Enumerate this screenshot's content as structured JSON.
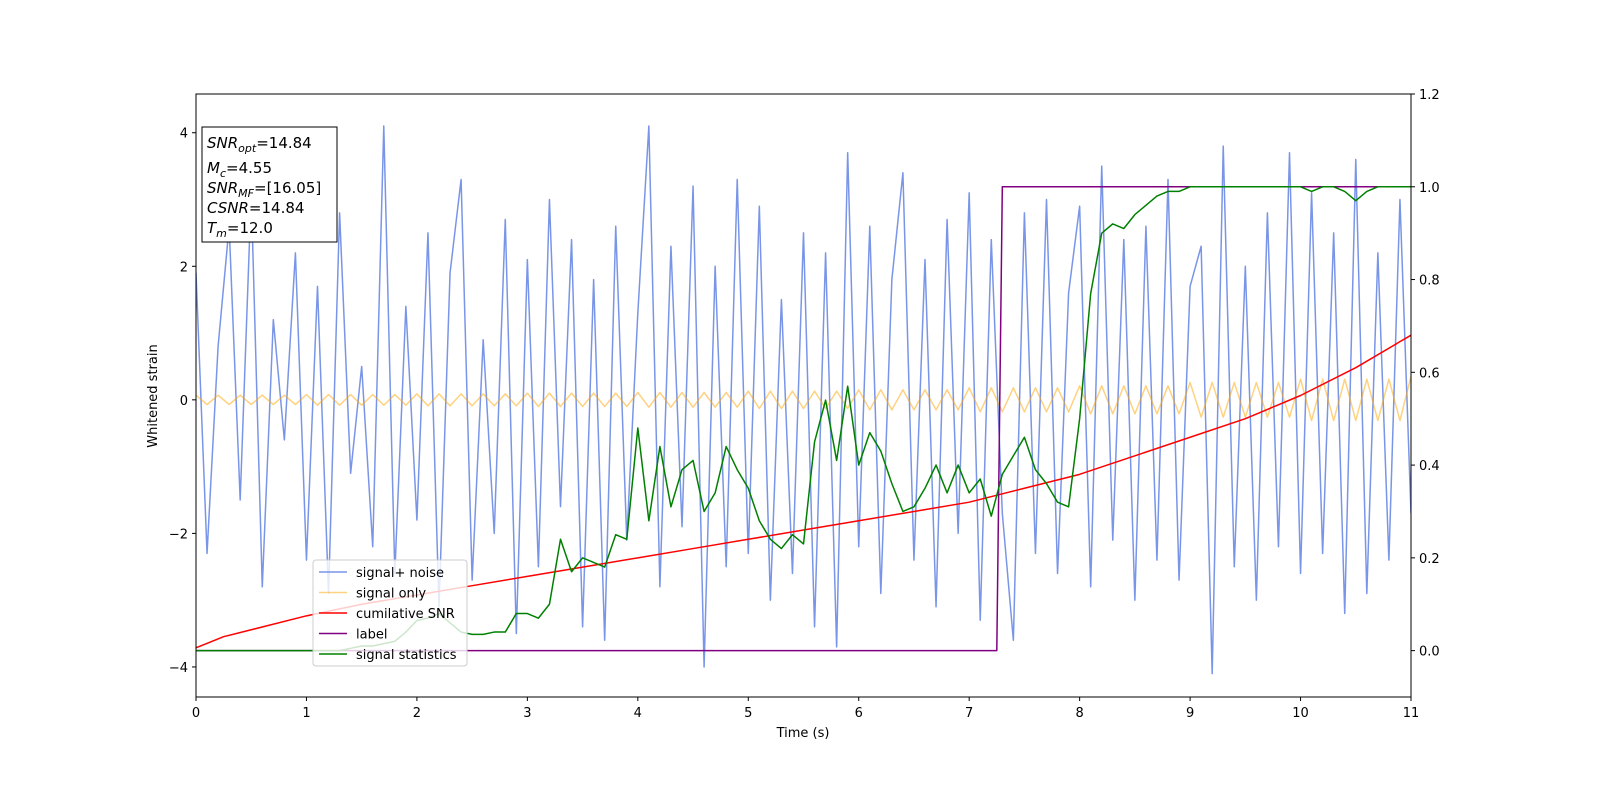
{
  "chart_data": {
    "type": "line",
    "xlabel": "Time (s)",
    "ylabel": "Whitened strain",
    "xlim": [
      0,
      11
    ],
    "xticks": [
      0,
      1,
      2,
      3,
      4,
      5,
      6,
      7,
      8,
      9,
      10,
      11
    ],
    "ylim": [
      -4.45,
      4.58
    ],
    "yticks": [
      {
        "value": -4,
        "label": "−4"
      },
      {
        "value": -2,
        "label": "−2"
      },
      0,
      2,
      4
    ],
    "y2lim": [
      -0.1,
      1.2
    ],
    "y2ticks": [
      {
        "value": 0,
        "label": "0.0"
      },
      0.2,
      0.4,
      0.6,
      0.8,
      {
        "value": 1,
        "label": "1.0"
      },
      1.2
    ],
    "legend": "lower left",
    "x": [
      0,
      0.1,
      0.2,
      0.3,
      0.4,
      0.5,
      0.6,
      0.7,
      0.8,
      0.9,
      1,
      1.1,
      1.2,
      1.3,
      1.4,
      1.5,
      1.6,
      1.7,
      1.8,
      1.9,
      2,
      2.1,
      2.2,
      2.3,
      2.4,
      2.5,
      2.6,
      2.7,
      2.8,
      2.9,
      3,
      3.1,
      3.2,
      3.3,
      3.4,
      3.5,
      3.6,
      3.7,
      3.8,
      3.9,
      4,
      4.1,
      4.2,
      4.3,
      4.4,
      4.5,
      4.6,
      4.7,
      4.8,
      4.9,
      5,
      5.1,
      5.2,
      5.3,
      5.4,
      5.5,
      5.6,
      5.7,
      5.8,
      5.9,
      6,
      6.1,
      6.2,
      6.3,
      6.4,
      6.5,
      6.6,
      6.7,
      6.8,
      6.9,
      7,
      7.1,
      7.2,
      7.3,
      7.4,
      7.5,
      7.6,
      7.7,
      7.8,
      7.9,
      8,
      8.1,
      8.2,
      8.3,
      8.4,
      8.5,
      8.6,
      8.7,
      8.8,
      8.9,
      9,
      9.1,
      9.2,
      9.3,
      9.4,
      9.5,
      9.6,
      9.7,
      9.8,
      9.9,
      10,
      10.1,
      10.2,
      10.3,
      10.4,
      10.5,
      10.6,
      10.7,
      10.8,
      10.9,
      11
    ],
    "series": [
      {
        "name": "signal+ noise",
        "color": "#6a8ae6",
        "alpha": 0.9,
        "values": [
          1.9,
          -2.3,
          0.8,
          2.6,
          -1.5,
          3.1,
          -2.8,
          1.2,
          -0.6,
          2.2,
          -2.4,
          1.7,
          -2.9,
          2.8,
          -1.1,
          0.5,
          -2.2,
          4.1,
          -2.6,
          1.4,
          -1.8,
          2.5,
          -3.1,
          1.9,
          3.3,
          -2.7,
          0.9,
          -2.0,
          2.7,
          -3.5,
          2.1,
          -2.5,
          3.0,
          -1.6,
          2.4,
          -3.4,
          1.8,
          -3.6,
          2.6,
          -2.1,
          1.3,
          4.1,
          -2.8,
          2.3,
          -1.9,
          3.2,
          -4.0,
          2.0,
          -2.5,
          3.3,
          -2.3,
          2.9,
          -3.0,
          1.5,
          -2.6,
          2.5,
          -3.4,
          2.2,
          -3.7,
          3.7,
          -2.2,
          2.6,
          -2.9,
          1.8,
          3.4,
          -2.4,
          2.1,
          -3.1,
          2.7,
          -2.0,
          3.1,
          -3.3,
          2.4,
          -1.7,
          -3.6,
          2.8,
          -2.3,
          3.0,
          -2.6,
          1.6,
          2.9,
          -2.8,
          3.5,
          -2.1,
          2.4,
          -3.0,
          2.6,
          -2.4,
          3.3,
          -2.7,
          1.7,
          2.3,
          -4.1,
          3.8,
          -2.5,
          2.0,
          -3.0,
          2.8,
          -2.2,
          3.7,
          -2.6,
          3.1,
          -2.3,
          2.5,
          -3.2,
          3.6,
          -2.9,
          2.2,
          -2.4,
          3.0,
          -1.7
        ]
      },
      {
        "name": "signal only",
        "color": "#ffa500",
        "alpha": 0.5,
        "values": [
          0.07,
          -0.07,
          0.07,
          -0.07,
          0.07,
          -0.07,
          0.07,
          -0.07,
          0.07,
          -0.07,
          0.08,
          -0.08,
          0.08,
          -0.08,
          0.08,
          -0.08,
          0.08,
          -0.08,
          0.08,
          -0.08,
          0.09,
          -0.09,
          0.09,
          -0.09,
          0.09,
          -0.09,
          0.09,
          -0.09,
          0.09,
          -0.09,
          0.1,
          -0.1,
          0.1,
          -0.1,
          0.1,
          -0.1,
          0.1,
          -0.1,
          0.1,
          -0.1,
          0.11,
          -0.11,
          0.11,
          -0.11,
          0.11,
          -0.11,
          0.11,
          -0.11,
          0.11,
          -0.11,
          0.13,
          -0.13,
          0.13,
          -0.13,
          0.13,
          -0.13,
          0.13,
          -0.13,
          0.13,
          -0.13,
          0.15,
          -0.15,
          0.15,
          -0.15,
          0.15,
          -0.15,
          0.15,
          -0.15,
          0.15,
          -0.15,
          0.18,
          -0.18,
          0.18,
          -0.18,
          0.18,
          -0.18,
          0.18,
          -0.18,
          0.18,
          -0.18,
          0.21,
          -0.21,
          0.21,
          -0.21,
          0.21,
          -0.21,
          0.21,
          -0.21,
          0.21,
          -0.21,
          0.26,
          -0.26,
          0.26,
          -0.26,
          0.26,
          -0.26,
          0.26,
          -0.26,
          0.26,
          -0.26,
          0.31,
          -0.31,
          0.31,
          -0.31,
          0.31,
          -0.31,
          0.31,
          -0.31,
          0.31,
          -0.31,
          0.35
        ]
      },
      {
        "name": "cumilative SNR",
        "color": "#ff0000",
        "alpha": 1,
        "axis": "y2",
        "x": [
          0,
          0.25,
          0.5,
          1,
          1.5,
          2,
          2.5,
          3,
          3.5,
          4,
          4.5,
          5,
          5.5,
          6,
          6.5,
          7,
          7.5,
          8,
          8.5,
          9,
          9.5,
          10,
          10.5,
          11
        ],
        "values": [
          0.006,
          0.03,
          0.045,
          0.075,
          0.1,
          0.12,
          0.14,
          0.16,
          0.18,
          0.2,
          0.22,
          0.24,
          0.26,
          0.28,
          0.3,
          0.32,
          0.35,
          0.38,
          0.42,
          0.46,
          0.5,
          0.55,
          0.61,
          0.68
        ]
      },
      {
        "name": "label",
        "color": "#800080",
        "alpha": 1,
        "axis": "y2",
        "x": [
          0,
          7.25,
          7.3,
          11
        ],
        "values": [
          0,
          0,
          1,
          1
        ]
      },
      {
        "name": "signal statistics",
        "color": "#008000",
        "alpha": 1,
        "axis": "y2",
        "values": [
          0,
          0,
          0,
          0,
          0,
          0,
          0,
          0,
          0,
          0,
          0,
          0,
          0,
          0,
          0.005,
          0.01,
          0.01,
          0.015,
          0.02,
          0.04,
          0.065,
          0.07,
          0.08,
          0.06,
          0.04,
          0.035,
          0.035,
          0.04,
          0.04,
          0.08,
          0.08,
          0.07,
          0.1,
          0.24,
          0.17,
          0.2,
          0.19,
          0.18,
          0.25,
          0.24,
          0.48,
          0.28,
          0.44,
          0.31,
          0.39,
          0.41,
          0.3,
          0.34,
          0.44,
          0.39,
          0.35,
          0.28,
          0.24,
          0.22,
          0.25,
          0.23,
          0.45,
          0.54,
          0.41,
          0.57,
          0.4,
          0.47,
          0.43,
          0.36,
          0.3,
          0.31,
          0.35,
          0.4,
          0.34,
          0.4,
          0.34,
          0.37,
          0.29,
          0.38,
          0.42,
          0.46,
          0.39,
          0.36,
          0.32,
          0.31,
          0.5,
          0.77,
          0.9,
          0.92,
          0.91,
          0.94,
          0.96,
          0.98,
          0.99,
          0.99,
          1,
          1,
          1,
          1,
          1,
          1,
          1,
          1,
          1,
          1,
          1,
          0.99,
          1,
          1,
          0.99,
          0.97,
          0.99,
          1,
          1,
          1,
          1
        ]
      }
    ],
    "annotations": [
      {
        "symbol": "SNR",
        "subscript": "opt",
        "value": "=14.84"
      },
      {
        "symbol": "M",
        "subscript": "c",
        "value": "=4.55"
      },
      {
        "symbol": "SNR",
        "subscript": "MF",
        "value": "=[16.05]"
      },
      {
        "symbol": "CSNR",
        "value": "=14.84"
      },
      {
        "symbol": "T",
        "subscript": "m",
        "value": "=12.0"
      }
    ]
  }
}
